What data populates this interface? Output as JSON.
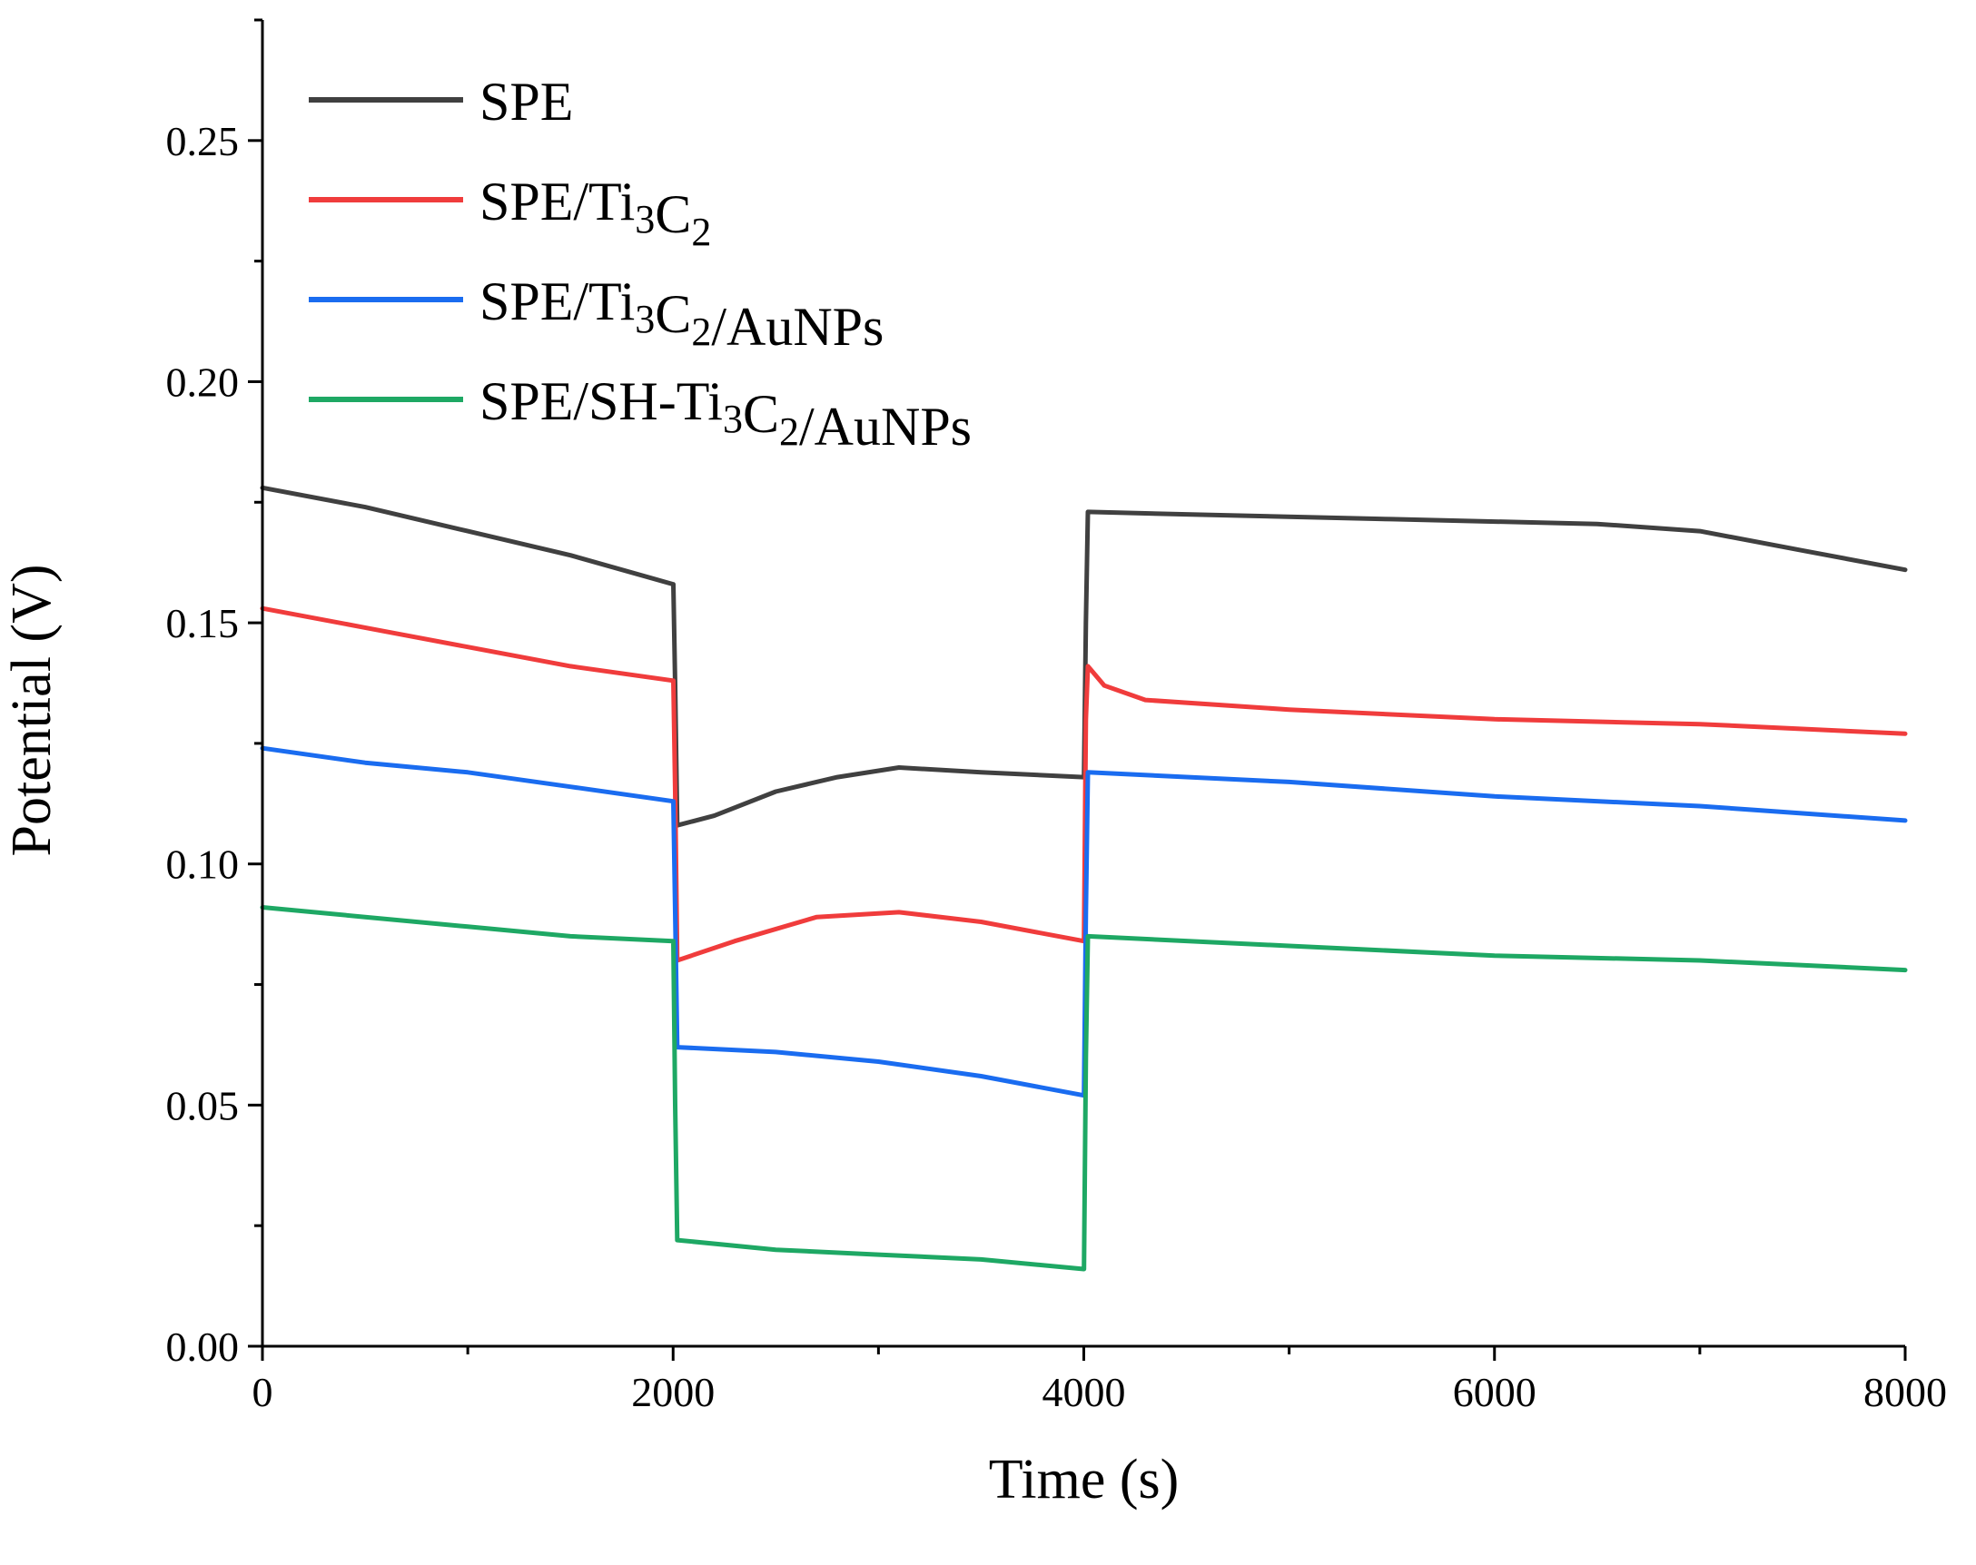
{
  "chart_data": {
    "type": "line",
    "title": "",
    "xlabel": "Time (s)",
    "ylabel": "Potential (V)",
    "xlim": [
      0,
      8000
    ],
    "ylim": [
      0,
      0.275
    ],
    "xticks": [
      0,
      2000,
      4000,
      6000,
      8000
    ],
    "xtick_labels": [
      "0",
      "2000",
      "4000",
      "6000",
      "8000"
    ],
    "yticks": [
      0,
      0.05,
      0.1,
      0.15,
      0.2,
      0.25
    ],
    "ytick_labels": [
      "0.00",
      "0.05",
      "0.10",
      "0.15",
      "0.20",
      "0.25"
    ],
    "legend_position": "top-left",
    "series": [
      {
        "key": "spe",
        "name": "SPE",
        "label_parts": [
          {
            "t": "SPE"
          }
        ],
        "color": "#404040",
        "points": [
          [
            0,
            0.178
          ],
          [
            500,
            0.174
          ],
          [
            1000,
            0.169
          ],
          [
            1500,
            0.164
          ],
          [
            2000,
            0.158
          ],
          [
            2001,
            0.158
          ],
          [
            2010,
            0.137
          ],
          [
            2020,
            0.108
          ],
          [
            2200,
            0.11
          ],
          [
            2500,
            0.115
          ],
          [
            2800,
            0.118
          ],
          [
            3100,
            0.12
          ],
          [
            3500,
            0.119
          ],
          [
            4000,
            0.118
          ],
          [
            4001,
            0.118
          ],
          [
            4010,
            0.15
          ],
          [
            4020,
            0.173
          ],
          [
            4500,
            0.1725
          ],
          [
            5500,
            0.1715
          ],
          [
            6500,
            0.1705
          ],
          [
            7000,
            0.169
          ],
          [
            7500,
            0.165
          ],
          [
            8000,
            0.161
          ]
        ]
      },
      {
        "key": "ti3c2",
        "name": "SPE/Ti3C2",
        "label_parts": [
          {
            "t": "SPE/Ti"
          },
          {
            "t": "3",
            "sub": true
          },
          {
            "t": "C"
          },
          {
            "t": "2",
            "sub": true
          }
        ],
        "color": "#f03c3c",
        "points": [
          [
            0,
            0.153
          ],
          [
            500,
            0.149
          ],
          [
            1000,
            0.145
          ],
          [
            1500,
            0.141
          ],
          [
            2000,
            0.138
          ],
          [
            2001,
            0.138
          ],
          [
            2010,
            0.115
          ],
          [
            2020,
            0.08
          ],
          [
            2300,
            0.084
          ],
          [
            2700,
            0.089
          ],
          [
            3100,
            0.09
          ],
          [
            3500,
            0.088
          ],
          [
            4000,
            0.084
          ],
          [
            4001,
            0.084
          ],
          [
            4010,
            0.13
          ],
          [
            4020,
            0.141
          ],
          [
            4100,
            0.137
          ],
          [
            4300,
            0.134
          ],
          [
            5000,
            0.132
          ],
          [
            6000,
            0.13
          ],
          [
            7000,
            0.129
          ],
          [
            8000,
            0.127
          ]
        ]
      },
      {
        "key": "ti3c2_aunps",
        "name": "SPE/Ti3C2/AuNPs",
        "label_parts": [
          {
            "t": "SPE/Ti"
          },
          {
            "t": "3",
            "sub": true
          },
          {
            "t": "C"
          },
          {
            "t": "2",
            "sub": true
          },
          {
            "t": "/AuNPs"
          }
        ],
        "color": "#1a6cf0",
        "points": [
          [
            0,
            0.124
          ],
          [
            500,
            0.121
          ],
          [
            1000,
            0.119
          ],
          [
            1500,
            0.116
          ],
          [
            2000,
            0.113
          ],
          [
            2001,
            0.113
          ],
          [
            2010,
            0.09
          ],
          [
            2020,
            0.062
          ],
          [
            2500,
            0.061
          ],
          [
            3000,
            0.059
          ],
          [
            3500,
            0.056
          ],
          [
            4000,
            0.052
          ],
          [
            4001,
            0.052
          ],
          [
            4010,
            0.09
          ],
          [
            4020,
            0.119
          ],
          [
            5000,
            0.117
          ],
          [
            6000,
            0.114
          ],
          [
            7000,
            0.112
          ],
          [
            8000,
            0.109
          ]
        ]
      },
      {
        "key": "sh_ti3c2_aunps",
        "name": "SPE/SH-Ti3C2/AuNPs",
        "label_parts": [
          {
            "t": "SPE/SH-Ti"
          },
          {
            "t": "3",
            "sub": true
          },
          {
            "t": "C"
          },
          {
            "t": "2",
            "sub": true
          },
          {
            "t": "/AuNPs"
          }
        ],
        "color": "#1ea864",
        "points": [
          [
            0,
            0.091
          ],
          [
            500,
            0.089
          ],
          [
            1000,
            0.087
          ],
          [
            1500,
            0.085
          ],
          [
            2000,
            0.084
          ],
          [
            2001,
            0.084
          ],
          [
            2010,
            0.05
          ],
          [
            2020,
            0.022
          ],
          [
            2500,
            0.02
          ],
          [
            3000,
            0.019
          ],
          [
            3500,
            0.018
          ],
          [
            4000,
            0.016
          ],
          [
            4001,
            0.016
          ],
          [
            4010,
            0.06
          ],
          [
            4020,
            0.085
          ],
          [
            5000,
            0.083
          ],
          [
            6000,
            0.081
          ],
          [
            7000,
            0.08
          ],
          [
            8000,
            0.078
          ]
        ]
      }
    ]
  }
}
